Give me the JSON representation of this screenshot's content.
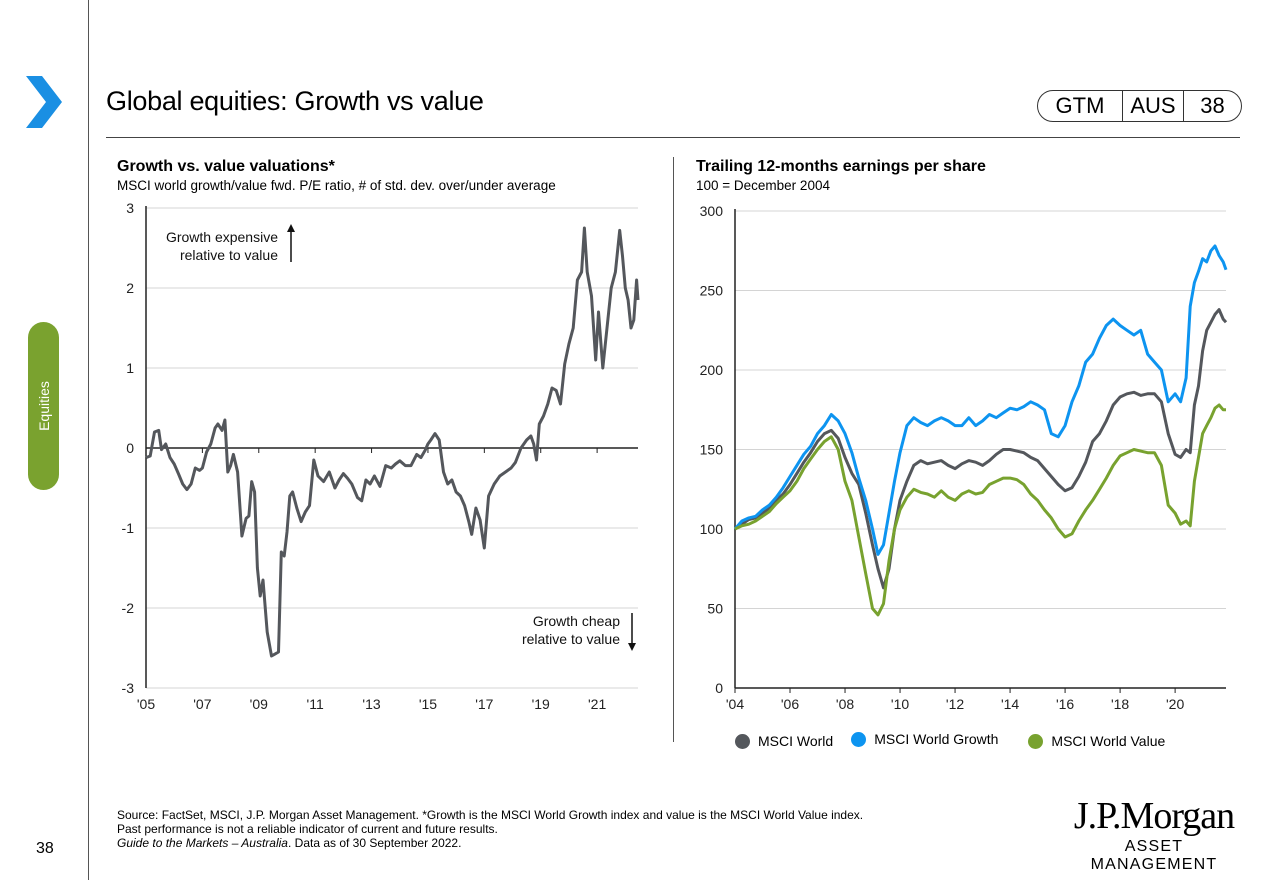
{
  "header": {
    "title": "Global equities: Growth vs value",
    "badge": [
      "GTM",
      "AUS",
      "38"
    ],
    "section_tab": "Equities",
    "page_number": "38"
  },
  "colors": {
    "accent_blue": "#1a8fe3",
    "section_green": "#7aa22f",
    "series_world": "#54575c",
    "series_growth": "#0d94f0",
    "series_value": "#78a22f"
  },
  "chart_data": [
    {
      "type": "line",
      "title": "Growth vs. value valuations*",
      "subtitle": "MSCI world growth/value fwd. P/E ratio, # of std. dev. over/under average",
      "xlabel": "",
      "ylabel": "",
      "ylim": [
        -3,
        3
      ],
      "xlim": [
        2005,
        2022.45
      ],
      "yticks": [
        "3",
        "2",
        "1",
        "0",
        "-1",
        "-2",
        "-3"
      ],
      "ytick_values": [
        3,
        2,
        1,
        0,
        -1,
        -2,
        -3
      ],
      "xticks": [
        "'05",
        "'07",
        "'09",
        "'11",
        "'13",
        "'15",
        "'17",
        "'19",
        "'21"
      ],
      "xtick_values": [
        2005,
        2007,
        2009,
        2011,
        2013,
        2015,
        2017,
        2019,
        2021
      ],
      "grid": true,
      "annotations": [
        {
          "text_lines": [
            "Growth expensive",
            "relative to value"
          ],
          "arrow": "up",
          "position": "top-left"
        },
        {
          "text_lines": [
            "Growth cheap",
            "relative to value"
          ],
          "arrow": "down",
          "position": "bottom-right"
        }
      ],
      "series": [
        {
          "name": "Growth/value fwd. P/E std. dev.",
          "color": "#54575c",
          "x": [
            2005.0,
            2005.15,
            2005.3,
            2005.45,
            2005.55,
            2005.7,
            2005.85,
            2006.0,
            2006.15,
            2006.3,
            2006.45,
            2006.6,
            2006.75,
            2006.9,
            2007.0,
            2007.15,
            2007.3,
            2007.45,
            2007.55,
            2007.7,
            2007.8,
            2007.9,
            2008.0,
            2008.1,
            2008.25,
            2008.4,
            2008.55,
            2008.65,
            2008.75,
            2008.85,
            2008.95,
            2009.05,
            2009.15,
            2009.3,
            2009.45,
            2009.55,
            2009.7,
            2009.8,
            2009.9,
            2010.0,
            2010.1,
            2010.2,
            2010.35,
            2010.5,
            2010.65,
            2010.8,
            2010.95,
            2011.1,
            2011.3,
            2011.5,
            2011.7,
            2011.85,
            2012.0,
            2012.15,
            2012.3,
            2012.5,
            2012.65,
            2012.8,
            2012.95,
            2013.1,
            2013.3,
            2013.5,
            2013.7,
            2013.85,
            2014.0,
            2014.2,
            2014.4,
            2014.6,
            2014.75,
            2014.9,
            2015.0,
            2015.1,
            2015.25,
            2015.4,
            2015.55,
            2015.7,
            2015.85,
            2016.0,
            2016.15,
            2016.3,
            2016.45,
            2016.55,
            2016.7,
            2016.85,
            2017.0,
            2017.15,
            2017.35,
            2017.55,
            2017.75,
            2017.95,
            2018.1,
            2018.3,
            2018.5,
            2018.65,
            2018.75,
            2018.85,
            2018.95,
            2019.1,
            2019.25,
            2019.4,
            2019.55,
            2019.7,
            2019.85,
            2020.0,
            2020.15,
            2020.3,
            2020.45,
            2020.55,
            2020.65,
            2020.8,
            2020.95,
            2021.05,
            2021.2,
            2021.35,
            2021.5,
            2021.65,
            2021.8,
            2021.9,
            2022.0,
            2022.1,
            2022.2,
            2022.3,
            2022.4,
            2022.45
          ],
          "y": [
            -0.12,
            -0.1,
            0.2,
            0.22,
            -0.02,
            0.05,
            -0.12,
            -0.2,
            -0.32,
            -0.45,
            -0.52,
            -0.45,
            -0.25,
            -0.28,
            -0.25,
            -0.05,
            0.05,
            0.25,
            0.3,
            0.22,
            0.35,
            -0.3,
            -0.22,
            -0.08,
            -0.3,
            -1.1,
            -0.88,
            -0.85,
            -0.42,
            -0.55,
            -1.5,
            -1.85,
            -1.65,
            -2.3,
            -2.6,
            -2.58,
            -2.55,
            -1.3,
            -1.35,
            -1.05,
            -0.6,
            -0.55,
            -0.75,
            -0.92,
            -0.8,
            -0.72,
            -0.15,
            -0.35,
            -0.42,
            -0.3,
            -0.5,
            -0.4,
            -0.32,
            -0.38,
            -0.45,
            -0.62,
            -0.66,
            -0.4,
            -0.45,
            -0.35,
            -0.48,
            -0.22,
            -0.25,
            -0.2,
            -0.16,
            -0.22,
            -0.22,
            -0.08,
            -0.12,
            -0.03,
            0.05,
            0.1,
            0.18,
            0.1,
            -0.3,
            -0.45,
            -0.4,
            -0.55,
            -0.6,
            -0.72,
            -0.92,
            -1.08,
            -0.75,
            -0.9,
            -1.25,
            -0.6,
            -0.45,
            -0.35,
            -0.3,
            -0.25,
            -0.18,
            0.0,
            0.1,
            0.15,
            0.05,
            -0.15,
            0.3,
            0.4,
            0.55,
            0.75,
            0.72,
            0.55,
            1.05,
            1.3,
            1.5,
            2.1,
            2.2,
            2.75,
            2.2,
            1.9,
            1.1,
            1.7,
            1.0,
            1.5,
            2.0,
            2.2,
            2.72,
            2.4,
            2.0,
            1.85,
            1.5,
            1.6,
            2.1,
            1.85
          ]
        }
      ]
    },
    {
      "type": "line",
      "title": "Trailing 12-months earnings per share",
      "subtitle": "100 = December 2004",
      "xlabel": "",
      "ylabel": "",
      "ylim": [
        0,
        300
      ],
      "xlim": [
        2004,
        2021.85
      ],
      "yticks": [
        "300",
        "250",
        "200",
        "150",
        "100",
        "50",
        "0"
      ],
      "ytick_values": [
        300,
        250,
        200,
        150,
        100,
        50,
        0
      ],
      "xticks": [
        "'04",
        "'06",
        "'08",
        "'10",
        "'12",
        "'14",
        "'16",
        "'18",
        "'20"
      ],
      "xtick_values": [
        2004,
        2006,
        2008,
        2010,
        2012,
        2014,
        2016,
        2018,
        2020
      ],
      "grid": true,
      "legend": "bottom",
      "x": [
        2004.0,
        2004.25,
        2004.5,
        2004.75,
        2005.0,
        2005.25,
        2005.5,
        2005.75,
        2006.0,
        2006.25,
        2006.5,
        2006.75,
        2007.0,
        2007.25,
        2007.5,
        2007.75,
        2008.0,
        2008.25,
        2008.5,
        2008.75,
        2009.0,
        2009.2,
        2009.4,
        2009.6,
        2009.8,
        2010.0,
        2010.25,
        2010.5,
        2010.75,
        2011.0,
        2011.25,
        2011.5,
        2011.75,
        2012.0,
        2012.25,
        2012.5,
        2012.75,
        2013.0,
        2013.25,
        2013.5,
        2013.75,
        2014.0,
        2014.25,
        2014.5,
        2014.75,
        2015.0,
        2015.25,
        2015.5,
        2015.75,
        2016.0,
        2016.25,
        2016.5,
        2016.75,
        2017.0,
        2017.25,
        2017.5,
        2017.75,
        2018.0,
        2018.25,
        2018.5,
        2018.75,
        2019.0,
        2019.25,
        2019.5,
        2019.75,
        2020.0,
        2020.2,
        2020.4,
        2020.55,
        2020.7,
        2020.85,
        2021.0,
        2021.15,
        2021.3,
        2021.45,
        2021.6,
        2021.75,
        2021.85
      ],
      "series": [
        {
          "name": "MSCI World",
          "color": "#54575c",
          "values": [
            100,
            103,
            106,
            107,
            110,
            113,
            118,
            122,
            128,
            135,
            142,
            148,
            155,
            160,
            162,
            157,
            145,
            135,
            128,
            110,
            90,
            75,
            63,
            75,
            100,
            118,
            130,
            140,
            143,
            141,
            142,
            143,
            140,
            138,
            141,
            143,
            142,
            140,
            143,
            147,
            150,
            150,
            149,
            148,
            145,
            143,
            138,
            133,
            128,
            124,
            126,
            133,
            142,
            155,
            160,
            168,
            178,
            183,
            185,
            186,
            184,
            185,
            185,
            180,
            160,
            147,
            145,
            150,
            148,
            178,
            190,
            212,
            225,
            230,
            235,
            238,
            232,
            230
          ]
        },
        {
          "name": "MSCI World Growth",
          "color": "#0d94f0",
          "values": [
            100,
            105,
            107,
            108,
            112,
            115,
            120,
            126,
            133,
            140,
            147,
            152,
            160,
            165,
            172,
            168,
            160,
            148,
            132,
            118,
            100,
            84,
            90,
            110,
            130,
            148,
            165,
            170,
            167,
            165,
            168,
            170,
            168,
            165,
            165,
            170,
            165,
            168,
            172,
            170,
            173,
            176,
            175,
            177,
            180,
            178,
            175,
            160,
            158,
            165,
            180,
            190,
            205,
            210,
            220,
            228,
            232,
            228,
            225,
            222,
            225,
            210,
            205,
            200,
            180,
            185,
            180,
            195,
            240,
            255,
            262,
            270,
            268,
            275,
            278,
            272,
            268,
            263
          ]
        },
        {
          "name": "MSCI World Value",
          "color": "#78a22f",
          "values": [
            100,
            102,
            103,
            105,
            108,
            111,
            116,
            120,
            124,
            130,
            138,
            144,
            150,
            155,
            158,
            150,
            130,
            118,
            95,
            72,
            50,
            46,
            53,
            80,
            100,
            112,
            120,
            125,
            123,
            122,
            120,
            124,
            120,
            118,
            122,
            124,
            122,
            123,
            128,
            130,
            132,
            132,
            131,
            128,
            122,
            118,
            112,
            107,
            100,
            95,
            97,
            105,
            112,
            118,
            125,
            132,
            140,
            146,
            148,
            150,
            149,
            148,
            148,
            140,
            115,
            110,
            103,
            105,
            102,
            130,
            145,
            160,
            165,
            170,
            176,
            178,
            175,
            175
          ]
        }
      ]
    }
  ],
  "footnote": {
    "line1": "Source: FactSet, MSCI, J.P. Morgan Asset Management. *Growth is the MSCI World Growth index and value is the MSCI World Value index.",
    "line2": "Past performance is not a reliable indicator of current and future results.",
    "line3_italic": "Guide to the Markets – Australia",
    "line3_rest": ". Data as of 30 September 2022."
  },
  "logo": {
    "name": "J.P.Morgan",
    "sub": "ASSET MANAGEMENT"
  }
}
